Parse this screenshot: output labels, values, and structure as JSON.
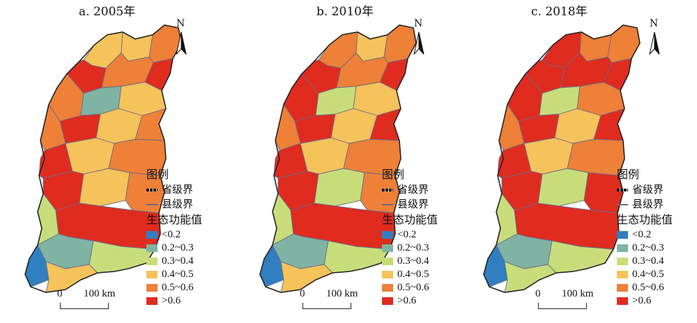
{
  "panels": [
    {
      "title": "a. 2005年",
      "north": "N",
      "scale": {
        "zero": "0",
        "dist": "100 km"
      },
      "region_classes": [
        "r3",
        "r3",
        "r4",
        "r5",
        "r4",
        "r5",
        "r4",
        "r1",
        "r3",
        "r4",
        "r5",
        "r3",
        "r4",
        "r5",
        "r3",
        "r4",
        "r5",
        "r3",
        "r4",
        "r2",
        "r5",
        "r1",
        "r2",
        "r0",
        "r3"
      ]
    },
    {
      "title": "b. 2010年",
      "north": "N",
      "scale": {
        "zero": "0",
        "dist": "100 km"
      },
      "region_classes": [
        "r4",
        "r3",
        "r4",
        "r5",
        "r4",
        "r5",
        "r5",
        "r2",
        "r3",
        "r4",
        "r5",
        "r3",
        "r5",
        "r5",
        "r3",
        "r4",
        "r5",
        "r2",
        "r4",
        "r2",
        "r5",
        "r1",
        "r2",
        "r0",
        "r3"
      ]
    },
    {
      "title": "c. 2018年",
      "north": "N",
      "scale": {
        "zero": "0",
        "dist": "100 km"
      },
      "region_classes": [
        "r5",
        "r4",
        "r4",
        "r5",
        "r5",
        "r5",
        "r5",
        "r2",
        "r4",
        "r4",
        "r5",
        "r3",
        "r5",
        "r5",
        "r3",
        "r4",
        "r5",
        "r2",
        "r5",
        "r2",
        "r5",
        "r1",
        "r2",
        "r0",
        "r2"
      ]
    }
  ],
  "legend": {
    "title": "图例",
    "province_boundary": "省级界",
    "county_boundary": "县级界",
    "value_title": "生态功能值",
    "classes": [
      {
        "id": "r0",
        "label": "<0.2",
        "color": "#2f7fc1"
      },
      {
        "id": "r1",
        "label": "0.2~0.3",
        "color": "#7fb3a3"
      },
      {
        "id": "r2",
        "label": "0.3~0.4",
        "color": "#c8dd7a"
      },
      {
        "id": "r3",
        "label": "0.4~0.5",
        "color": "#f6c25a"
      },
      {
        "id": "r4",
        "label": "0.5~0.6",
        "color": "#ee8037"
      },
      {
        "id": "r5",
        "label": ">0.6",
        "color": "#e02b1f"
      }
    ]
  }
}
